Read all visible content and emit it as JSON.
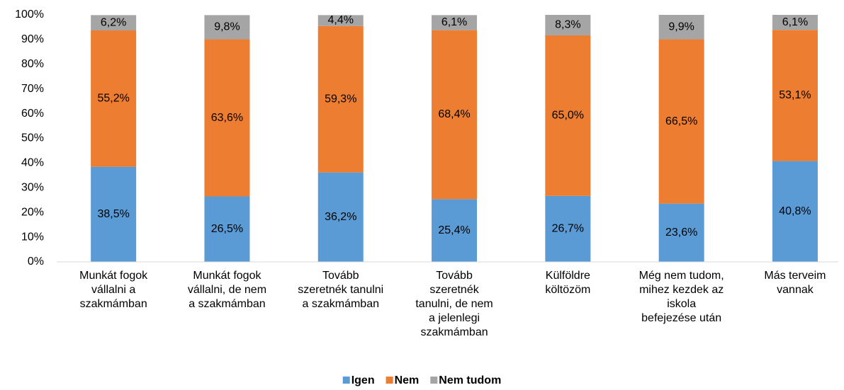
{
  "chart_data": {
    "type": "stacked_bar",
    "categories": [
      "Munkát fogok vállalni a szakmámban",
      "Munkát fogok vállalni, de nem a szakmámban",
      "Tovább szeretnék tanulni a szakmámban",
      "Tovább szeretnék tanulni, de nem a jelenlegi szakmámban",
      "Külföldre költözöm",
      "Még nem tudom, mihez kezdek az iskola befejezése után",
      "Más terveim vannak"
    ],
    "series": [
      {
        "name": "Igen",
        "color": "#5b9bd5",
        "values": [
          38.5,
          26.5,
          36.2,
          25.4,
          26.7,
          23.6,
          40.8
        ],
        "value_labels": [
          "38,5%",
          "26,5%",
          "36,2%",
          "25,4%",
          "26,7%",
          "23,6%",
          "40,8%"
        ]
      },
      {
        "name": "Nem",
        "color": "#ed7d31",
        "values": [
          55.2,
          63.6,
          59.3,
          68.4,
          65.0,
          66.5,
          53.1
        ],
        "value_labels": [
          "55,2%",
          "63,6%",
          "59,3%",
          "68,4%",
          "65,0%",
          "66,5%",
          "53,1%"
        ]
      },
      {
        "name": "Nem tudom",
        "color": "#a5a5a5",
        "values": [
          6.2,
          9.8,
          4.4,
          6.1,
          8.3,
          9.9,
          6.1
        ],
        "value_labels": [
          "6,2%",
          "9,8%",
          "4,4%",
          "6,1%",
          "8,3%",
          "9,9%",
          "6,1%"
        ]
      }
    ],
    "ylim": [
      0,
      100
    ],
    "yticks": [
      {
        "value": 0,
        "label": "0%"
      },
      {
        "value": 10,
        "label": "10%"
      },
      {
        "value": 20,
        "label": "20%"
      },
      {
        "value": 30,
        "label": "30%"
      },
      {
        "value": 40,
        "label": "40%"
      },
      {
        "value": 50,
        "label": "50%"
      },
      {
        "value": 60,
        "label": "60%"
      },
      {
        "value": 70,
        "label": "70%"
      },
      {
        "value": 80,
        "label": "80%"
      },
      {
        "value": 90,
        "label": "90%"
      },
      {
        "value": 100,
        "label": "100%"
      }
    ],
    "grid": false,
    "legend": "bottom"
  }
}
